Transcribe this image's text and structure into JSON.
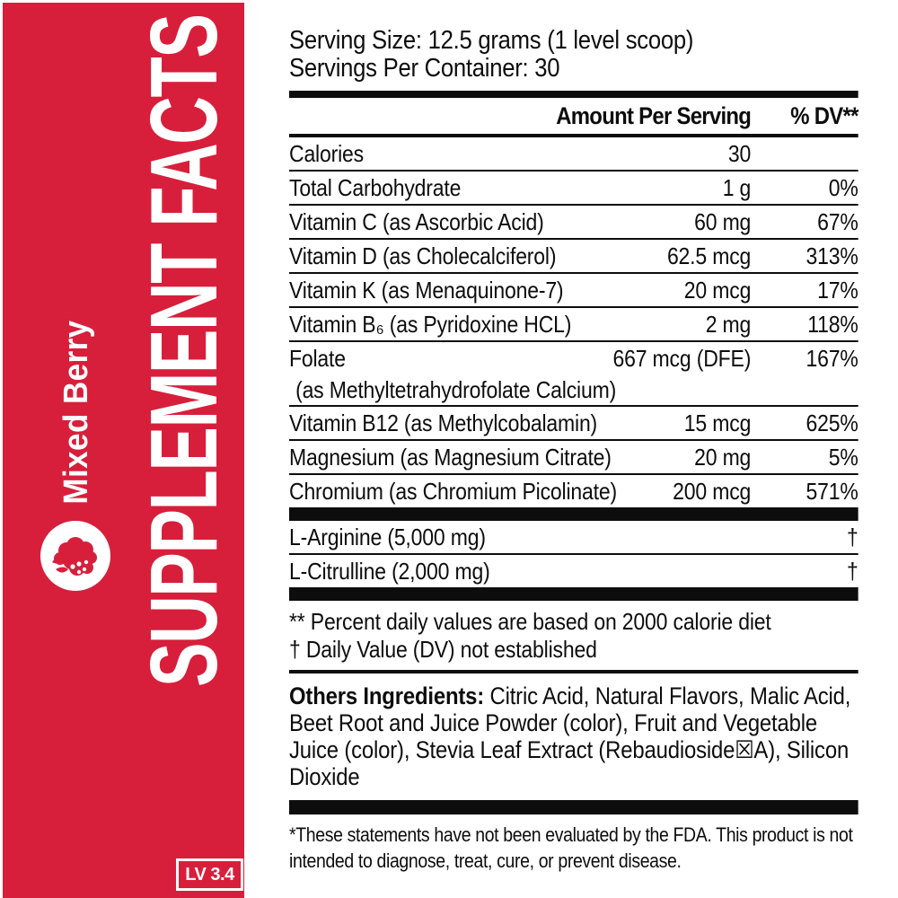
{
  "banner": {
    "title": "SUPPLEMENT FACTS",
    "flavor": "Mixed Berry",
    "badge": "LV 3.4",
    "accent_color": "#D71F3B",
    "icon": "berry-icon"
  },
  "serving": {
    "size": "Serving Size: 12.5 grams (1 level scoop)",
    "per_container": "Servings Per Container: 30"
  },
  "table": {
    "headers": {
      "amount": "Amount Per Serving",
      "dv": "% DV**"
    },
    "rows": [
      {
        "name": "Calories",
        "amount": "30",
        "dv": ""
      },
      {
        "name": "Total Carbohydrate",
        "amount": "1 g",
        "dv": "0%"
      },
      {
        "name": "Vitamin C (as Ascorbic Acid)",
        "amount": "60 mg",
        "dv": "67%"
      },
      {
        "name": "Vitamin D (as Cholecalciferol)",
        "amount": "62.5 mcg",
        "dv": "313%"
      },
      {
        "name": "Vitamin K (as Menaquinone-7)",
        "amount": "20 mcg",
        "dv": "17%"
      },
      {
        "name": "Vitamin B₆ (as Pyridoxine HCL)",
        "amount": "2 mg",
        "dv": "118%"
      },
      {
        "name": "Folate",
        "name2": " (as Methyltetrahydrofolate Calcium)",
        "amount": "667 mcg (DFE)",
        "dv": "167%"
      },
      {
        "name": "Vitamin B12 (as Methylcobalamin)",
        "amount": "15 mcg",
        "dv": "625%"
      },
      {
        "name": "Magnesium (as Magnesium Citrate)",
        "amount": "20 mg",
        "dv": "5%"
      },
      {
        "name": "Chromium (as Chromium Picolinate)",
        "amount": "200 mcg",
        "dv": "571%"
      }
    ],
    "extra_rows": [
      {
        "name": "L-Arginine (5,000 mg)",
        "amount": "",
        "dv": "†"
      },
      {
        "name": "L-Citrulline (2,000 mg)",
        "amount": "",
        "dv": "†"
      }
    ]
  },
  "footnotes": {
    "dv_note": "** Percent daily values are based on 2000 calorie diet",
    "dagger_note": "† Daily Value (DV) not established"
  },
  "ingredients": {
    "label": "Others Ingredients:",
    "text": " Citric Acid, Natural Flavors, Malic Acid, Beet Root and Juice Powder (color), Fruit and Vegetable Juice (color), Stevia Leaf Extract (Rebaudioside☒A), Silicon Dioxide"
  },
  "disclaimer": "*These statements have not been evaluated by the FDA. This product is not intended to diagnose, treat, cure, or prevent disease."
}
